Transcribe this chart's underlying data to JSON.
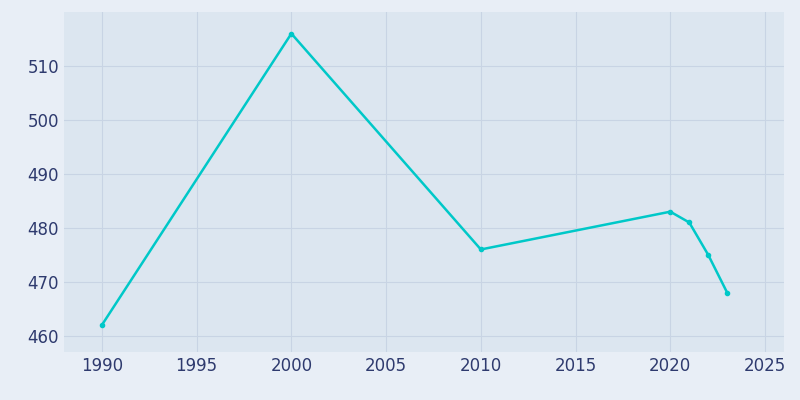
{
  "years": [
    1990,
    2000,
    2010,
    2020,
    2021,
    2022,
    2023
  ],
  "population": [
    462,
    516,
    476,
    483,
    481,
    475,
    468
  ],
  "line_color": "#00C8C8",
  "marker": "o",
  "marker_size": 3,
  "line_width": 1.8,
  "xlabel": "",
  "ylabel": "",
  "xlim": [
    1988,
    2026
  ],
  "ylim": [
    457,
    520
  ],
  "xticks": [
    1990,
    1995,
    2000,
    2005,
    2010,
    2015,
    2020,
    2025
  ],
  "yticks": [
    460,
    470,
    480,
    490,
    500,
    510
  ],
  "plot_bg_color": "#DCE6F0",
  "fig_bg_color": "#E8EEF6",
  "grid_color": "#C8D4E4",
  "tick_label_color": "#2E3A6E",
  "tick_fontsize": 12
}
